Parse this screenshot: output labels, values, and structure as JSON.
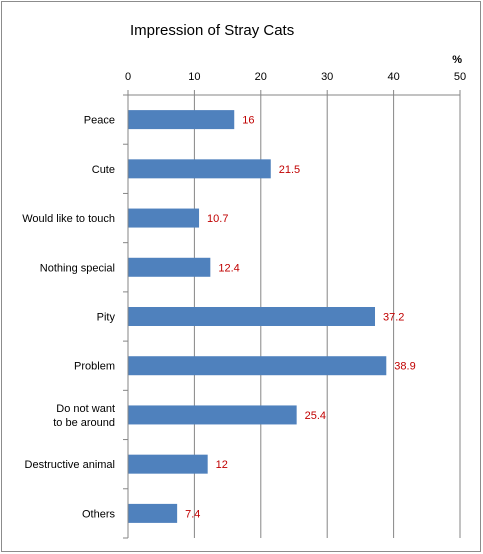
{
  "chart_data": {
    "type": "bar",
    "orientation": "horizontal",
    "title": "Impression of Stray Cats",
    "unit_label": "%",
    "xlim": [
      0,
      50
    ],
    "xticks": [
      0,
      10,
      20,
      30,
      40,
      50
    ],
    "grid": true,
    "bar_color": "#4f81bd",
    "label_color": "#c00000",
    "categories": [
      "Peace",
      "Cute",
      "Would like to touch",
      "Nothing special",
      "Pity",
      "Problem",
      "Do not want to be around",
      "Destructive animal",
      "Others"
    ],
    "values": [
      16,
      21.5,
      10.7,
      12.4,
      37.2,
      38.9,
      25.4,
      12,
      7.4
    ],
    "value_labels": [
      "16",
      "21.5",
      "10.7",
      "12.4",
      "37.2",
      "38.9",
      "25.4",
      "12",
      "7.4"
    ]
  }
}
